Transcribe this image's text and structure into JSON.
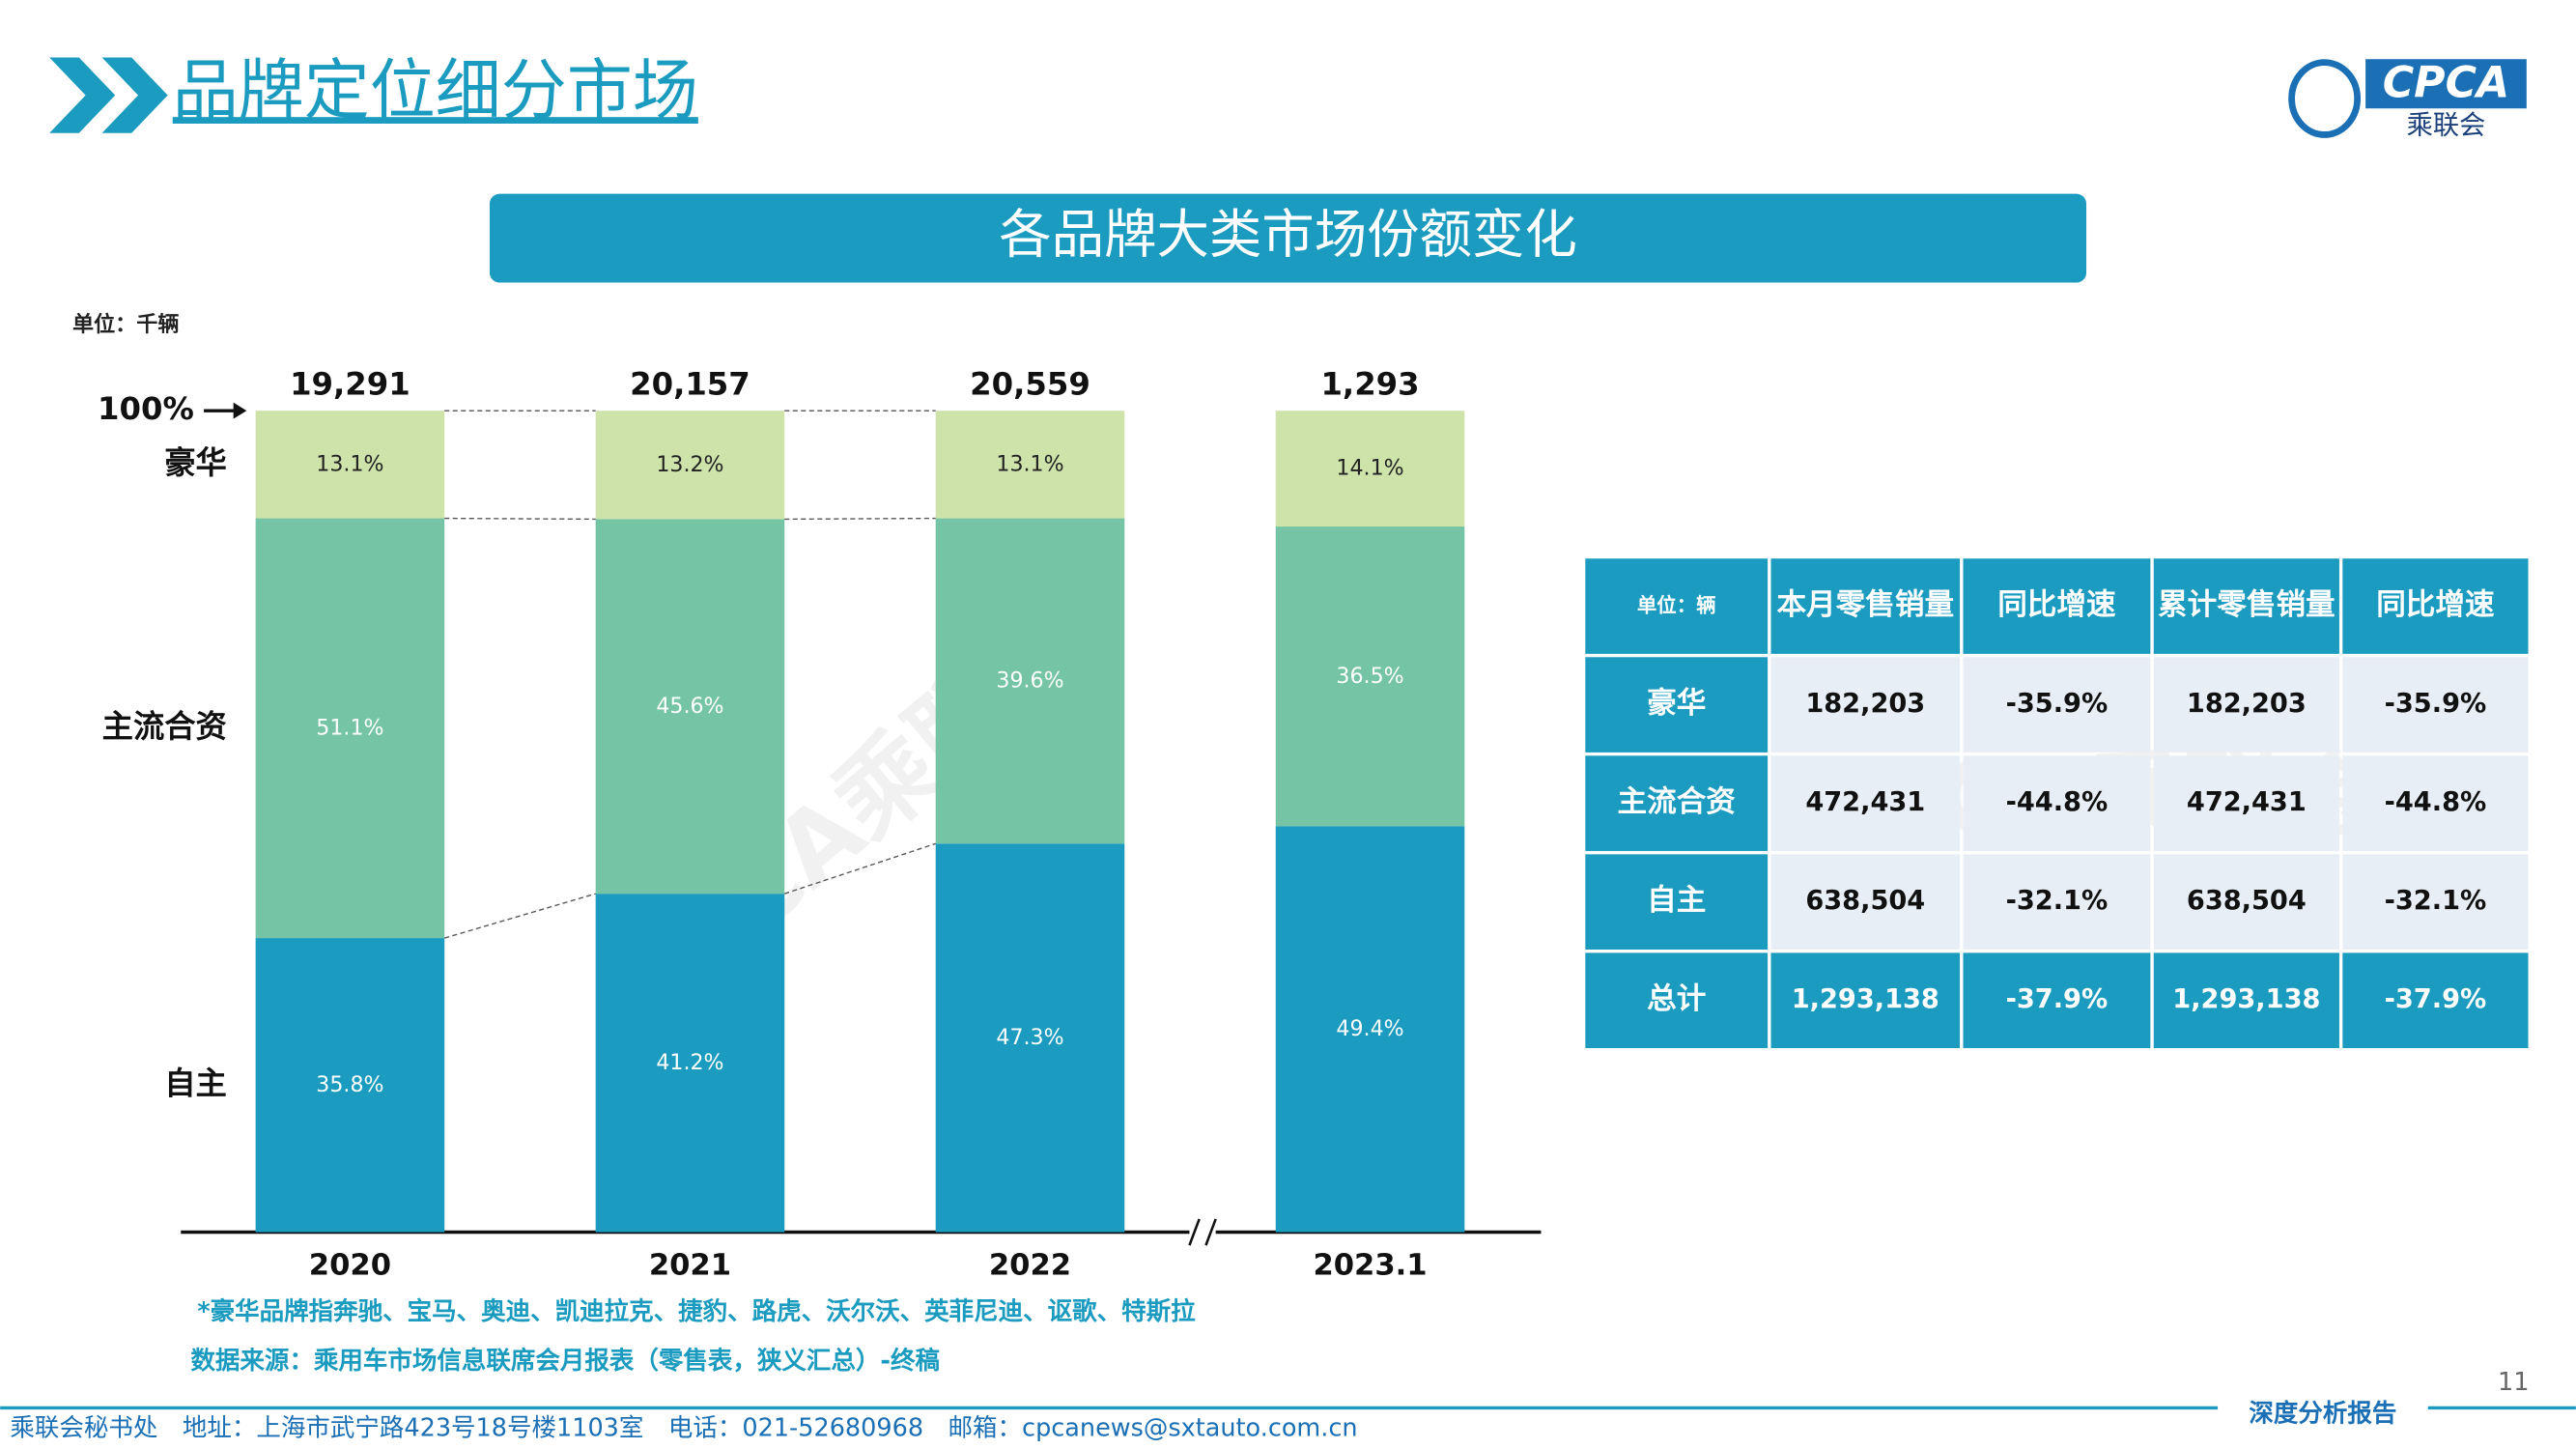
{
  "header": {
    "title": "品牌定位细分市场",
    "logo": "CPCA",
    "logo_sub": "乘联会"
  },
  "chart_data": {
    "type": "bar",
    "stacked": true,
    "title": "各品牌大类市场份额变化",
    "unit": "单位：千辆",
    "categories": [
      "2020",
      "2021",
      "2022",
      "2023.1"
    ],
    "totals": [
      {
        "value": 19291,
        "label": "19,291"
      },
      {
        "value": 20157,
        "label": "20,157"
      },
      {
        "value": 20559,
        "label": "20,559"
      },
      {
        "value": 1293,
        "label": "1,293"
      }
    ],
    "series": [
      {
        "name": "自主",
        "color": "#1a9bbf",
        "values": [
          35.8,
          41.2,
          47.3,
          49.4
        ],
        "value_labels": [
          "35.8%",
          "41.2%",
          "47.3%",
          "49.4%"
        ]
      },
      {
        "name": "主流合资",
        "color": "#74c4a5",
        "values": [
          51.1,
          45.6,
          39.6,
          36.5
        ],
        "value_labels": [
          "51.1%",
          "45.6%",
          "39.6%",
          "36.5%"
        ]
      },
      {
        "name": "豪华",
        "color": "#cde3aa",
        "values": [
          13.1,
          13.2,
          13.1,
          14.1
        ],
        "value_labels": [
          "13.1%",
          "13.2%",
          "13.1%",
          "14.1%"
        ]
      }
    ],
    "ylim": [
      0,
      100
    ],
    "yticks": [
      {
        "value": 100,
        "label": "100%"
      }
    ],
    "notes": [
      "*豪华品牌指奔驰、宝马、奥迪、凯迪拉克、捷豹、路虎、沃尔沃、英菲尼迪、讴歌、特斯拉",
      "数据来源：乘用车市场信息联席会月报表（零售表，狭义汇总）-终稿"
    ]
  },
  "watermark": "CPCA乘联会",
  "table": {
    "header": [
      "单位：辆",
      "本月零售销量",
      "同比增速",
      "累计零售销量",
      "同比增速"
    ],
    "rows": [
      [
        "豪华",
        "182,203",
        "-35.9%",
        "182,203",
        "-35.9%"
      ],
      [
        "主流合资",
        "472,431",
        "-44.8%",
        "472,431",
        "-44.8%"
      ],
      [
        "自主",
        "638,504",
        "-32.1%",
        "638,504",
        "-32.1%"
      ],
      [
        "总计",
        "1,293,138",
        "-37.9%",
        "1,293,138",
        "-37.9%"
      ]
    ]
  },
  "footer": {
    "text": "乘联会秘书处　地址：上海市武宁路423号18号楼1103室　电话：021-52680968　邮箱：cpcanews@sxtauto.com.cn",
    "report": "深度分析报告",
    "page": "11"
  }
}
